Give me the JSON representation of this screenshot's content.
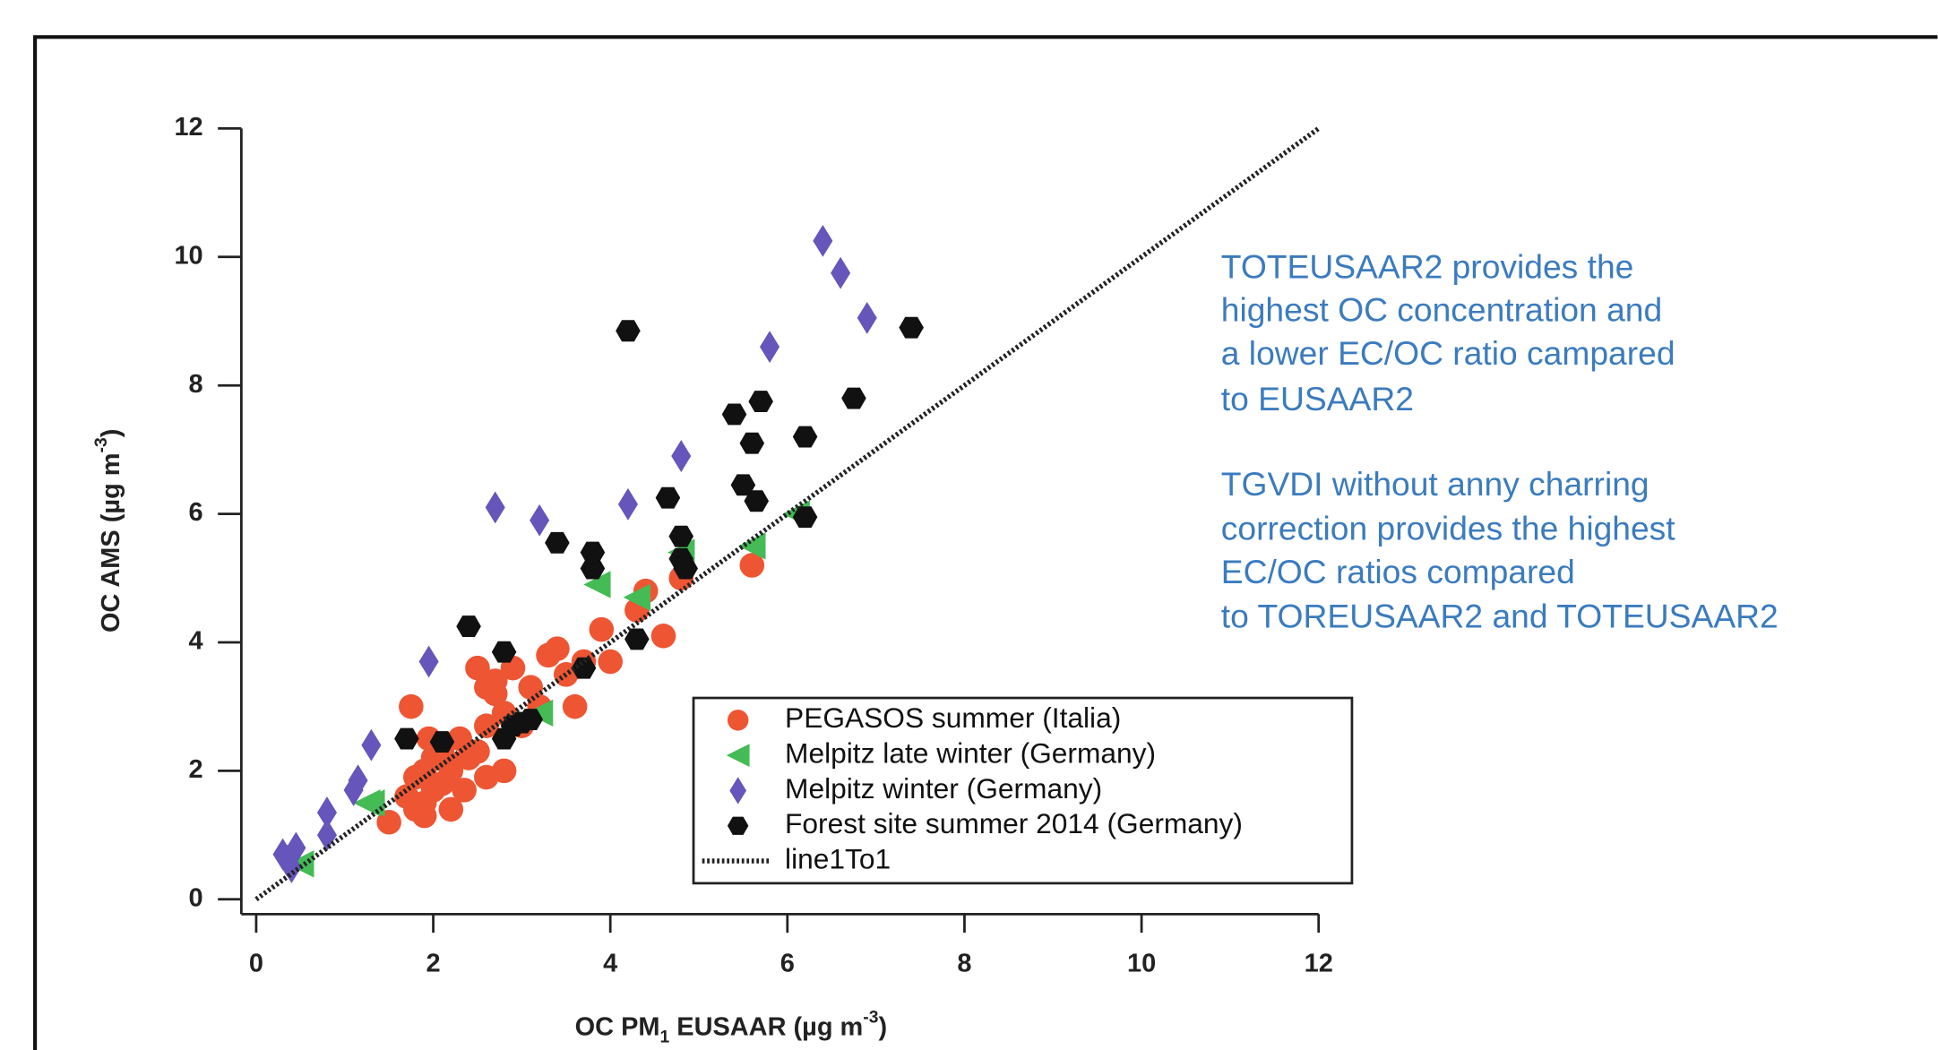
{
  "chart_data": {
    "type": "scatter",
    "xlabel": [
      "OC PM",
      "1",
      " EUSAAR (µg m",
      "-3",
      ")"
    ],
    "ylabel": [
      "OC AMS (µg m",
      "-3",
      ")"
    ],
    "xlim": [
      0,
      12
    ],
    "ylim": [
      0,
      12
    ],
    "xticks": [
      0,
      2,
      4,
      6,
      8,
      10,
      12
    ],
    "yticks": [
      0,
      2,
      4,
      6,
      8,
      10,
      12
    ],
    "annotations": [
      "TOTEUSAAR2 provides the",
      "highest OC concentration and",
      "a lower EC/OC ratio campared",
      "to EUSAAR2",
      "TGVDI without anny charring",
      "correction provides the highest",
      "EC/OC ratios compared",
      "to TOREUSAAR2 and TOTEUSAAR2"
    ],
    "series": [
      {
        "name": "PEGASOS summer (Italia)",
        "color": "#ee5533",
        "marker": "circle",
        "x": [
          1.5,
          1.7,
          1.8,
          1.9,
          1.9,
          1.8,
          1.9,
          2.0,
          2.0,
          2.1,
          2.1,
          2.2,
          2.2,
          2.3,
          2.4,
          2.5,
          1.75,
          2.5,
          2.6,
          2.6,
          2.7,
          2.7,
          2.8,
          2.8,
          2.6,
          2.9,
          3.0,
          3.1,
          3.2,
          3.3,
          3.4,
          3.5,
          3.6,
          3.7,
          3.9,
          4.0,
          4.3,
          4.4,
          4.6,
          4.8,
          5.6,
          1.95,
          2.2,
          2.35
        ],
        "values": [
          1.2,
          1.6,
          1.4,
          1.3,
          1.5,
          1.9,
          2.0,
          1.7,
          2.2,
          1.8,
          2.3,
          1.4,
          2.0,
          2.5,
          2.2,
          2.3,
          3.0,
          3.6,
          2.7,
          3.3,
          3.4,
          3.2,
          2.9,
          2.0,
          1.9,
          3.6,
          2.7,
          3.3,
          3.0,
          3.8,
          3.9,
          3.5,
          3.0,
          3.7,
          4.2,
          3.7,
          4.5,
          4.8,
          4.1,
          5.0,
          5.2,
          2.5,
          2.1,
          1.7
        ]
      },
      {
        "name": "Melpitz late winter (Germany)",
        "color": "#44bb55",
        "marker": "triangle-left",
        "x": [
          0.5,
          1.3,
          1.25,
          3.2,
          3.85,
          4.3,
          4.8,
          5.6,
          6.1
        ],
        "values": [
          0.55,
          1.5,
          1.5,
          2.9,
          4.9,
          4.7,
          5.4,
          5.5,
          6.0
        ]
      },
      {
        "name": "Melpitz winter (Germany)",
        "color": "#6655bb",
        "marker": "diamond",
        "x": [
          0.3,
          0.35,
          0.4,
          0.45,
          0.8,
          0.8,
          1.1,
          1.15,
          1.3,
          1.95,
          2.7,
          3.2,
          4.2,
          4.8,
          5.8,
          6.4,
          6.6,
          6.9
        ],
        "values": [
          0.7,
          0.6,
          0.5,
          0.8,
          1.0,
          1.35,
          1.7,
          1.85,
          2.4,
          3.7,
          6.1,
          5.9,
          6.15,
          6.9,
          8.6,
          10.25,
          9.75,
          9.05
        ]
      },
      {
        "name": "Forest site summer 2014 (Germany)",
        "color": "#111111",
        "marker": "hexagon",
        "x": [
          1.7,
          2.1,
          2.4,
          2.8,
          2.8,
          2.9,
          3.0,
          3.1,
          3.4,
          3.7,
          3.8,
          3.8,
          4.2,
          4.3,
          4.65,
          4.8,
          4.8,
          4.85,
          5.4,
          5.5,
          5.6,
          5.65,
          5.7,
          6.2,
          6.2,
          6.75,
          7.4
        ],
        "values": [
          2.5,
          2.45,
          4.25,
          3.85,
          2.5,
          2.7,
          2.75,
          2.8,
          5.55,
          3.6,
          5.4,
          5.15,
          8.85,
          4.05,
          6.25,
          5.65,
          5.3,
          5.15,
          7.55,
          6.45,
          7.1,
          6.2,
          7.75,
          7.2,
          5.95,
          7.8,
          8.9
        ]
      },
      {
        "name": "line1To1",
        "color": "#222222",
        "marker": "dotted-line",
        "x": [
          0,
          12
        ],
        "values": [
          0,
          12
        ]
      }
    ]
  }
}
